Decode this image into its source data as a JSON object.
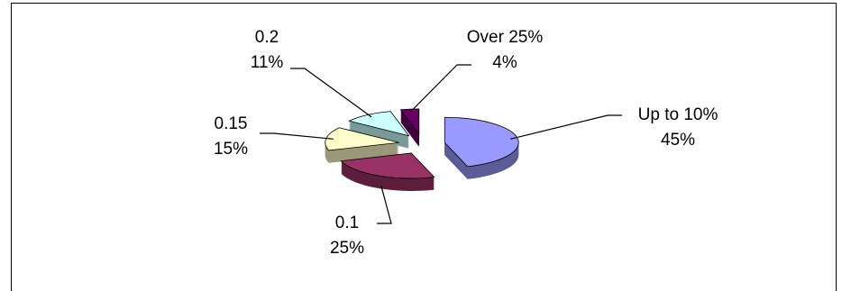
{
  "chart_data": {
    "type": "pie",
    "categories": [
      "Up to 10%",
      "0.1",
      "0.15",
      "0.2",
      "Over 25%"
    ],
    "values": [
      45,
      25,
      15,
      11,
      4
    ],
    "value_labels": [
      "45%",
      "25%",
      "15%",
      "11%",
      "4%"
    ],
    "colors": [
      "#9999ff",
      "#993366",
      "#ffffcc",
      "#ccffff",
      "#660066"
    ]
  }
}
